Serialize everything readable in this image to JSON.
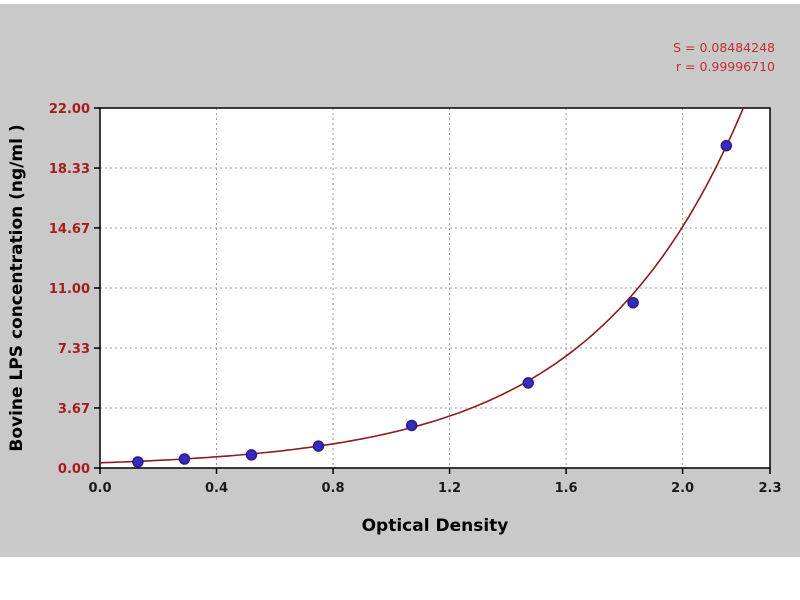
{
  "chart_data": {
    "type": "scatter",
    "title": "",
    "xlabel": "Optical Density",
    "ylabel": "Bovine LPS concentration (ng/ml )",
    "xlim": [
      0,
      2.3
    ],
    "ylim": [
      0,
      22
    ],
    "x_ticks": {
      "values": [
        0,
        0.4,
        0.8,
        1.2,
        1.6,
        2.0,
        2.3
      ],
      "labels": [
        "0.0",
        "0.4",
        "0.8",
        "1.2",
        "1.6",
        "2.0",
        "2.3"
      ]
    },
    "y_ticks": {
      "values": [
        0,
        3.67,
        7.33,
        11.0,
        14.67,
        18.33,
        22.0
      ],
      "labels": [
        "0.00",
        "3.67",
        "7.33",
        "11.00",
        "14.67",
        "18.33",
        "22.00"
      ]
    },
    "grid": true,
    "legend": "none",
    "points": [
      {
        "x": 0.13,
        "y": 0.37
      },
      {
        "x": 0.29,
        "y": 0.55
      },
      {
        "x": 0.52,
        "y": 0.8
      },
      {
        "x": 0.75,
        "y": 1.34
      },
      {
        "x": 1.07,
        "y": 2.6
      },
      {
        "x": 1.47,
        "y": 5.2
      },
      {
        "x": 1.83,
        "y": 10.1
      },
      {
        "x": 2.15,
        "y": 19.7
      }
    ],
    "fit_curve": {
      "model": "y = a*exp(b*x)",
      "a": 0.317,
      "b": 1.92
    },
    "stats": {
      "s_line": "S = 0.08484248",
      "r_line": "r = 0.99996710"
    },
    "colors": {
      "curve": "#8b1d1d",
      "point_fill": "#2e2ec4",
      "point_stroke": "#3a1680",
      "y_tick_label": "#a61c1c",
      "x_tick_label": "#1a1a1a",
      "stats_text": "#c03030",
      "panel_bg": "#c9c9c9",
      "plot_bg": "#ffffff",
      "grid_line": "#9a9a9a",
      "axis_title": "#000000"
    }
  }
}
